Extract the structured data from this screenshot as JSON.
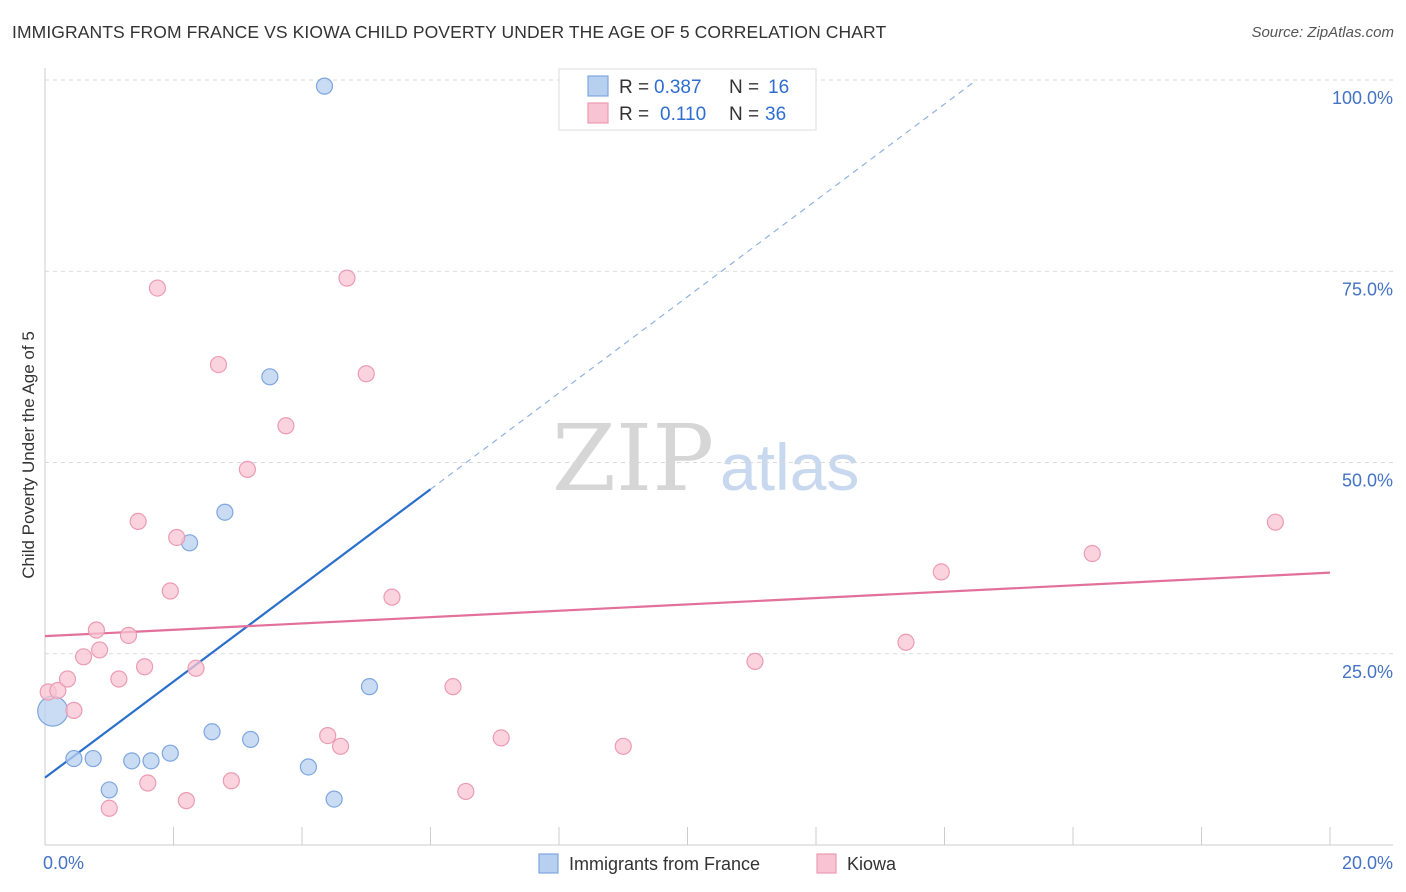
{
  "title": "IMMIGRANTS FROM FRANCE VS KIOWA CHILD POVERTY UNDER THE AGE OF 5 CORRELATION CHART",
  "source": "Source: ZipAtlas.com",
  "watermark": {
    "part1": "ZIP",
    "part2": "atlas"
  },
  "colors": {
    "blue_fill": "#b7d0f0",
    "blue_stroke": "#7ea6df",
    "blue_line": "#2a6fcc",
    "pink_fill": "#f8c4d3",
    "pink_stroke": "#ec9bb4",
    "pink_line": "#e2709a",
    "tick_text": "#4472c4",
    "grid": "#d9d9d9"
  },
  "legend_top": {
    "rows": [
      {
        "r_label": "R =",
        "r_value": "0.387",
        "n_label": "N =",
        "n_value": "16"
      },
      {
        "r_label": "R =",
        "r_value": "0.110",
        "n_label": "N =",
        "n_value": "36"
      }
    ]
  },
  "chart_data": {
    "type": "scatter",
    "title": "IMMIGRANTS FROM FRANCE VS KIOWA CHILD POVERTY UNDER THE AGE OF 5 CORRELATION CHART",
    "xlabel": "",
    "ylabel": "Child Poverty Under the Age of 5",
    "xlim": [
      0,
      20
    ],
    "ylim": [
      0,
      100
    ],
    "x_tick_labels": [
      "0.0%",
      "20.0%"
    ],
    "y_ticks": [
      25,
      50,
      75,
      100
    ],
    "y_tick_labels": [
      "25.0%",
      "50.0%",
      "75.0%",
      "100.0%"
    ],
    "grid": true,
    "series": [
      {
        "name": "Immigrants from France",
        "color": "blue",
        "r": 0.387,
        "n": 16,
        "points": [
          {
            "x": 0.12,
            "y": 17.5,
            "big": true
          },
          {
            "x": 0.45,
            "y": 11.3
          },
          {
            "x": 0.75,
            "y": 11.3
          },
          {
            "x": 1.0,
            "y": 7.2
          },
          {
            "x": 1.35,
            "y": 11.0
          },
          {
            "x": 1.65,
            "y": 11.0
          },
          {
            "x": 1.95,
            "y": 12.0
          },
          {
            "x": 2.25,
            "y": 39.5
          },
          {
            "x": 2.6,
            "y": 14.8
          },
          {
            "x": 2.8,
            "y": 43.5
          },
          {
            "x": 3.2,
            "y": 13.8
          },
          {
            "x": 3.5,
            "y": 61.2
          },
          {
            "x": 4.1,
            "y": 10.2
          },
          {
            "x": 4.5,
            "y": 6.0
          },
          {
            "x": 4.35,
            "y": 99.2
          },
          {
            "x": 5.05,
            "y": 20.7
          }
        ],
        "trend": {
          "x0": 0.0,
          "y0": 8.8,
          "x1": 6.0,
          "y1": 46.5,
          "dash_to_x": 14.5,
          "dash_to_y": 100.0
        }
      },
      {
        "name": "Kiowa",
        "color": "pink",
        "r": 0.11,
        "n": 36,
        "points": [
          {
            "x": 0.05,
            "y": 20.0
          },
          {
            "x": 0.2,
            "y": 20.2
          },
          {
            "x": 0.35,
            "y": 21.7
          },
          {
            "x": 0.45,
            "y": 17.6
          },
          {
            "x": 0.6,
            "y": 24.6
          },
          {
            "x": 0.8,
            "y": 28.1
          },
          {
            "x": 0.85,
            "y": 25.5
          },
          {
            "x": 1.0,
            "y": 4.8
          },
          {
            "x": 1.15,
            "y": 21.7
          },
          {
            "x": 1.3,
            "y": 27.4
          },
          {
            "x": 1.45,
            "y": 42.3
          },
          {
            "x": 1.55,
            "y": 23.3
          },
          {
            "x": 1.6,
            "y": 8.1
          },
          {
            "x": 1.75,
            "y": 72.8
          },
          {
            "x": 1.95,
            "y": 33.2
          },
          {
            "x": 2.05,
            "y": 40.2
          },
          {
            "x": 2.2,
            "y": 5.8
          },
          {
            "x": 2.35,
            "y": 23.1
          },
          {
            "x": 2.7,
            "y": 62.8
          },
          {
            "x": 2.9,
            "y": 8.4
          },
          {
            "x": 3.15,
            "y": 49.1
          },
          {
            "x": 3.75,
            "y": 54.8
          },
          {
            "x": 4.4,
            "y": 14.3
          },
          {
            "x": 4.6,
            "y": 12.9
          },
          {
            "x": 4.7,
            "y": 74.1
          },
          {
            "x": 5.0,
            "y": 61.6
          },
          {
            "x": 5.4,
            "y": 32.4
          },
          {
            "x": 6.35,
            "y": 20.7
          },
          {
            "x": 6.55,
            "y": 7.0
          },
          {
            "x": 7.1,
            "y": 14.0
          },
          {
            "x": 9.0,
            "y": 12.9
          },
          {
            "x": 11.05,
            "y": 24.0
          },
          {
            "x": 13.4,
            "y": 26.5
          },
          {
            "x": 13.95,
            "y": 35.7
          },
          {
            "x": 16.3,
            "y": 38.1
          },
          {
            "x": 19.15,
            "y": 42.2
          }
        ],
        "trend": {
          "x0": 0.0,
          "y0": 27.3,
          "x1": 20.0,
          "y1": 35.6
        }
      }
    ]
  },
  "legend_bottom": {
    "items": [
      {
        "label": "Immigrants from France",
        "color": "blue"
      },
      {
        "label": "Kiowa",
        "color": "pink"
      }
    ]
  }
}
